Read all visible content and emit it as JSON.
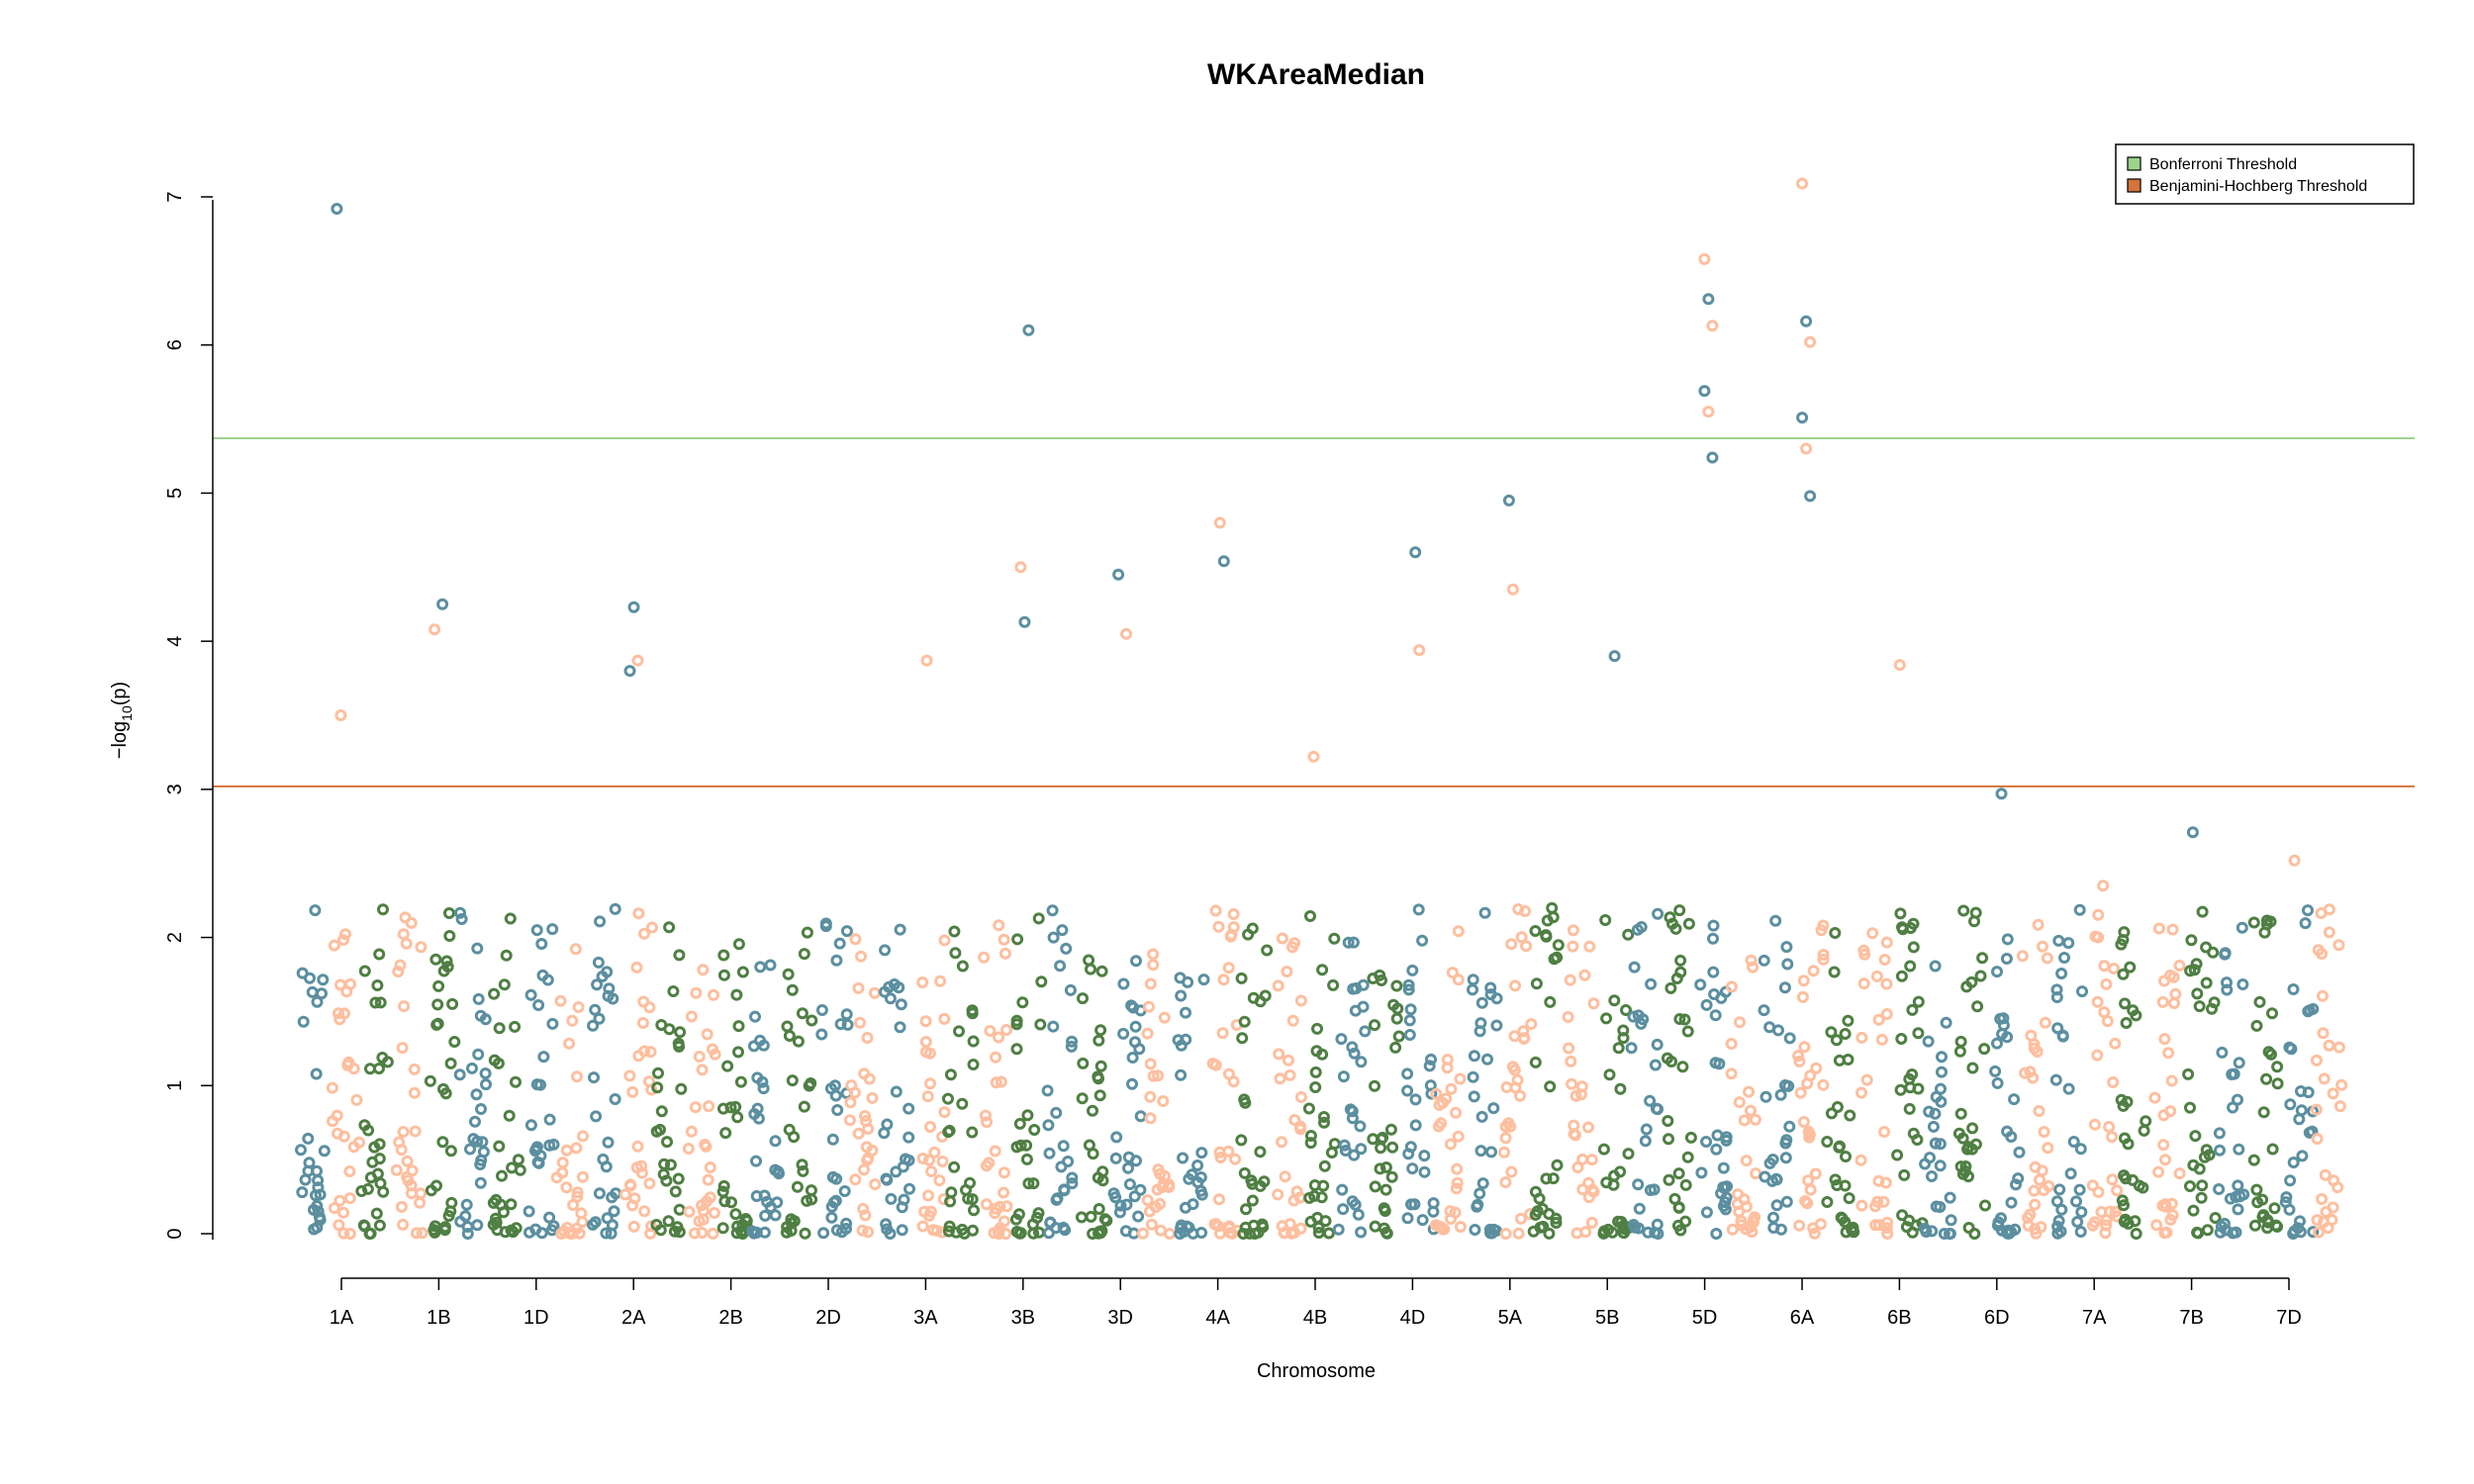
{
  "chart_data": {
    "type": "scatter",
    "title": "WKAreaMedian",
    "xlabel": "Chromosome",
    "ylabel": "-log10(p)",
    "ylim": [
      0,
      7
    ],
    "yticks": [
      0,
      1,
      2,
      3,
      4,
      5,
      6,
      7
    ],
    "chromosomes": [
      "1A",
      "1B",
      "1D",
      "2A",
      "2B",
      "2D",
      "3A",
      "3B",
      "3D",
      "4A",
      "4B",
      "4D",
      "5A",
      "5B",
      "5D",
      "6A",
      "6B",
      "6D",
      "7A",
      "7B",
      "7D"
    ],
    "palette": [
      "#5b8fa0",
      "#fdbf9f",
      "#4f7f43"
    ],
    "thresholds": [
      {
        "name": "Bonferroni Threshold",
        "value": 5.37,
        "color": "#9bd38d"
      },
      {
        "name": "Benjamini-Hochberg Threshold",
        "value": 3.02,
        "color": "#d2753a"
      }
    ],
    "legend_position": "top-right",
    "grid": false,
    "notable_points": [
      {
        "chromosome": "1A",
        "y": 6.92
      },
      {
        "chromosome": "1A",
        "y": 3.5
      },
      {
        "chromosome": "1B",
        "y": 4.25
      },
      {
        "chromosome": "1B",
        "y": 4.08
      },
      {
        "chromosome": "2A",
        "y": 4.23
      },
      {
        "chromosome": "2A",
        "y": 3.87
      },
      {
        "chromosome": "2A",
        "y": 3.8
      },
      {
        "chromosome": "3A",
        "y": 3.87
      },
      {
        "chromosome": "3B",
        "y": 6.1
      },
      {
        "chromosome": "3B",
        "y": 4.5
      },
      {
        "chromosome": "3B",
        "y": 4.13
      },
      {
        "chromosome": "3D",
        "y": 4.05
      },
      {
        "chromosome": "3D",
        "y": 4.45
      },
      {
        "chromosome": "4A",
        "y": 4.8
      },
      {
        "chromosome": "4A",
        "y": 4.54
      },
      {
        "chromosome": "4B",
        "y": 3.22
      },
      {
        "chromosome": "4D",
        "y": 4.6
      },
      {
        "chromosome": "4D",
        "y": 3.94
      },
      {
        "chromosome": "5A",
        "y": 4.95
      },
      {
        "chromosome": "5A",
        "y": 4.35
      },
      {
        "chromosome": "5B",
        "y": 3.9
      },
      {
        "chromosome": "5D",
        "y": 6.58
      },
      {
        "chromosome": "5D",
        "y": 6.31
      },
      {
        "chromosome": "5D",
        "y": 6.13
      },
      {
        "chromosome": "5D",
        "y": 5.69
      },
      {
        "chromosome": "5D",
        "y": 5.55
      },
      {
        "chromosome": "5D",
        "y": 5.24
      },
      {
        "chromosome": "6A",
        "y": 7.09
      },
      {
        "chromosome": "6A",
        "y": 6.16
      },
      {
        "chromosome": "6A",
        "y": 6.02
      },
      {
        "chromosome": "6A",
        "y": 5.51
      },
      {
        "chromosome": "6A",
        "y": 5.3
      },
      {
        "chromosome": "6A",
        "y": 4.98
      },
      {
        "chromosome": "6B",
        "y": 3.84
      },
      {
        "chromosome": "6D",
        "y": 2.97
      },
      {
        "chromosome": "7A",
        "y": 2.35
      },
      {
        "chromosome": "7B",
        "y": 2.71
      },
      {
        "chromosome": "7D",
        "y": 2.52
      }
    ]
  }
}
